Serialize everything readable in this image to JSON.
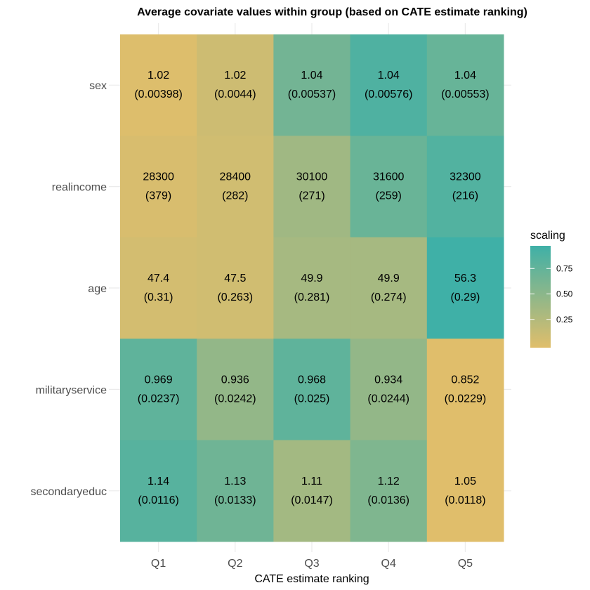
{
  "chart_data": {
    "type": "heatmap",
    "title": "Average covariate values within group (based on CATE estimate ranking)",
    "xlabel": "CATE estimate ranking",
    "ylabel": "",
    "x_categories": [
      "Q1",
      "Q2",
      "Q3",
      "Q4",
      "Q5"
    ],
    "y_categories": [
      "sex",
      "realincome",
      "age",
      "militaryservice",
      "secondaryeduc"
    ],
    "cells": [
      [
        {
          "mean": "1.02",
          "se": "(0.00398)",
          "scaling": 0.02
        },
        {
          "mean": "1.02",
          "se": "(0.0044)",
          "scaling": 0.12
        },
        {
          "mean": "1.04",
          "se": "(0.00537)",
          "scaling": 0.68
        },
        {
          "mean": "1.04",
          "se": "(0.00576)",
          "scaling": 0.9
        },
        {
          "mean": "1.04",
          "se": "(0.00553)",
          "scaling": 0.75
        }
      ],
      [
        {
          "mean": "28300",
          "se": "(379)",
          "scaling": 0.05
        },
        {
          "mean": "28400",
          "se": "(282)",
          "scaling": 0.1
        },
        {
          "mean": "30100",
          "se": "(271)",
          "scaling": 0.4
        },
        {
          "mean": "31600",
          "se": "(259)",
          "scaling": 0.74
        },
        {
          "mean": "32300",
          "se": "(216)",
          "scaling": 0.88
        }
      ],
      [
        {
          "mean": "47.4",
          "se": "(0.31)",
          "scaling": 0.08
        },
        {
          "mean": "47.5",
          "se": "(0.263)",
          "scaling": 0.1
        },
        {
          "mean": "49.9",
          "se": "(0.281)",
          "scaling": 0.36
        },
        {
          "mean": "49.9",
          "se": "(0.274)",
          "scaling": 0.36
        },
        {
          "mean": "56.3",
          "se": "(0.29)",
          "scaling": 1.0
        }
      ],
      [
        {
          "mean": "0.969",
          "se": "(0.0237)",
          "scaling": 0.8
        },
        {
          "mean": "0.936",
          "se": "(0.0242)",
          "scaling": 0.48
        },
        {
          "mean": "0.968",
          "se": "(0.025)",
          "scaling": 0.8
        },
        {
          "mean": "0.934",
          "se": "(0.0244)",
          "scaling": 0.48
        },
        {
          "mean": "0.852",
          "se": "(0.0229)",
          "scaling": 0.0
        }
      ],
      [
        {
          "mean": "1.14",
          "se": "(0.0116)",
          "scaling": 0.85
        },
        {
          "mean": "1.13",
          "se": "(0.0133)",
          "scaling": 0.7
        },
        {
          "mean": "1.11",
          "se": "(0.0147)",
          "scaling": 0.38
        },
        {
          "mean": "1.12",
          "se": "(0.0136)",
          "scaling": 0.6
        },
        {
          "mean": "1.05",
          "se": "(0.0118)",
          "scaling": 0.0
        }
      ]
    ],
    "legend": {
      "title": "scaling",
      "position": "right",
      "ticks": [
        0.25,
        0.5,
        0.75
      ],
      "tick_labels": [
        "0.25",
        "0.50",
        "0.75"
      ],
      "range": [
        0,
        1
      ],
      "colors": [
        "#e0be6b",
        "#3fb0a7"
      ]
    },
    "grid": true,
    "background": "#ffffff",
    "grid_color": "#ebebeb"
  }
}
